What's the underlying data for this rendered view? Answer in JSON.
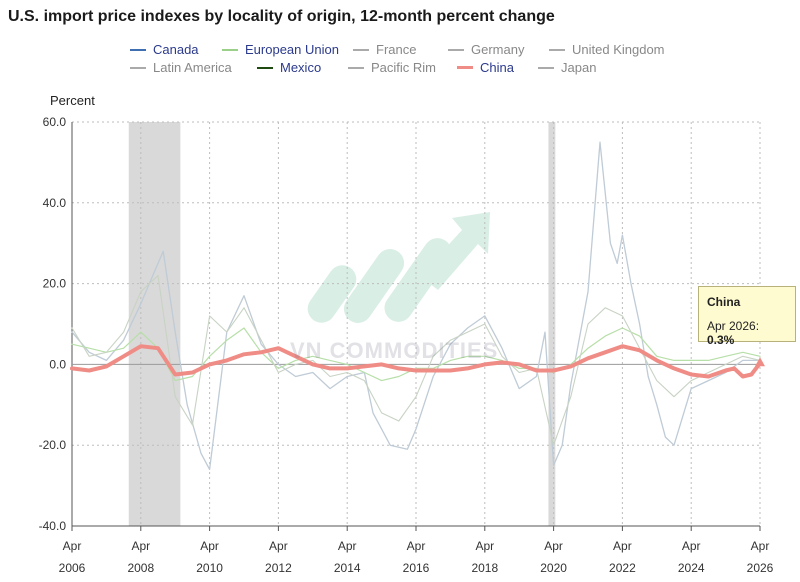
{
  "title": "U.S. import price indexes by locality of origin, 12-month percent change",
  "watermark": "VN COMMODITIES",
  "legend": [
    {
      "label": "Canada",
      "color": "#3f6fb0",
      "active": true
    },
    {
      "label": "European Union",
      "color": "#9bd08a",
      "active": true
    },
    {
      "label": "France",
      "color": "#aaaaaa",
      "active": false
    },
    {
      "label": "Germany",
      "color": "#aaaaaa",
      "active": false
    },
    {
      "label": "United Kingdom",
      "color": "#aaaaaa",
      "active": false
    },
    {
      "label": "Latin America",
      "color": "#aaaaaa",
      "active": false
    },
    {
      "label": "Mexico",
      "color": "#1f4a10",
      "active": true
    },
    {
      "label": "Pacific Rim",
      "color": "#aaaaaa",
      "active": false
    },
    {
      "label": "China",
      "color": "#f08c86",
      "active": true
    },
    {
      "label": "Japan",
      "color": "#aaaaaa",
      "active": false
    }
  ],
  "tooltip": {
    "title": "China",
    "date": "Apr 2026",
    "value": "0.3%"
  },
  "chart_data": {
    "type": "line",
    "ylabel": "Percent",
    "ylim": [
      -40,
      60
    ],
    "yticks": [
      "60.0",
      "40.0",
      "20.0",
      "0.0",
      "-20.0",
      "-40.0"
    ],
    "xlim": [
      2006.25,
      2026.25
    ],
    "xticks": [
      {
        "month": "Apr",
        "year": "2006",
        "x": 2006.25
      },
      {
        "month": "Apr",
        "year": "2008",
        "x": 2008.25
      },
      {
        "month": "Apr",
        "year": "2010",
        "x": 2010.25
      },
      {
        "month": "Apr",
        "year": "2012",
        "x": 2012.25
      },
      {
        "month": "Apr",
        "year": "2014",
        "x": 2014.25
      },
      {
        "month": "Apr",
        "year": "2016",
        "x": 2016.25
      },
      {
        "month": "Apr",
        "year": "2018",
        "x": 2018.25
      },
      {
        "month": "Apr",
        "year": "2020",
        "x": 2020.25
      },
      {
        "month": "Apr",
        "year": "2022",
        "x": 2022.25
      },
      {
        "month": "Apr",
        "year": "2024",
        "x": 2024.25
      },
      {
        "month": "Apr",
        "year": "2026",
        "x": 2026.25
      }
    ],
    "grid": true,
    "recessions": [
      [
        2007.9,
        2009.4
      ],
      [
        2020.1,
        2020.3
      ]
    ],
    "series": [
      {
        "name": "China",
        "color": "#f08c86",
        "width": 4,
        "x": [
          2006.25,
          2006.75,
          2007.25,
          2007.75,
          2008.25,
          2008.75,
          2009.25,
          2009.75,
          2010.25,
          2010.75,
          2011.25,
          2011.75,
          2012.25,
          2012.75,
          2013.25,
          2013.75,
          2014.25,
          2014.75,
          2015.25,
          2015.75,
          2016.25,
          2016.75,
          2017.25,
          2017.75,
          2018.25,
          2018.75,
          2019.25,
          2019.75,
          2020.25,
          2020.75,
          2021.25,
          2021.75,
          2022.25,
          2022.75,
          2023.25,
          2023.75,
          2024.25,
          2024.75,
          2025.25,
          2025.5,
          2025.75,
          2026.0,
          2026.25
        ],
        "y": [
          -1,
          -1.5,
          -0.5,
          2,
          4.5,
          4,
          -2.5,
          -2,
          0,
          1,
          2.5,
          3,
          4,
          2,
          0,
          -1,
          -1,
          -0.5,
          0,
          -1,
          -1.5,
          -1.5,
          -1.5,
          -1,
          0,
          0.5,
          0,
          -1.5,
          -1.5,
          -0.5,
          1.5,
          3,
          4.5,
          3.5,
          1,
          -1,
          -2.5,
          -3,
          -1.5,
          -1,
          -3,
          -2.5,
          0.3
        ]
      },
      {
        "name": "Canada",
        "color": "#bfcbd6",
        "width": 1.3,
        "x": [
          2006.25,
          2006.75,
          2007.25,
          2007.75,
          2008.25,
          2008.6,
          2008.9,
          2009.25,
          2009.6,
          2010.0,
          2010.25,
          2010.75,
          2011.25,
          2011.75,
          2012.25,
          2012.75,
          2013.25,
          2013.75,
          2014.25,
          2014.75,
          2015.0,
          2015.5,
          2016.0,
          2016.25,
          2016.75,
          2017.25,
          2017.75,
          2018.25,
          2018.75,
          2019.25,
          2019.75,
          2020.0,
          2020.25,
          2020.5,
          2020.75,
          2021.25,
          2021.6,
          2021.9,
          2022.1,
          2022.25,
          2022.5,
          2022.75,
          2023.0,
          2023.25,
          2023.5,
          2023.75,
          2024.25,
          2024.75,
          2025.25,
          2025.75,
          2026.25
        ],
        "y": [
          8,
          3,
          1,
          6,
          15,
          22,
          28,
          8,
          -10,
          -22,
          -26,
          8,
          17,
          5,
          0,
          -3,
          -2,
          -6,
          -3,
          -2,
          -12,
          -20,
          -21,
          -16,
          -3,
          5,
          9,
          12,
          4,
          -6,
          -3,
          8,
          -25,
          -20,
          -5,
          18,
          55,
          30,
          25,
          32,
          20,
          10,
          -3,
          -10,
          -18,
          -20,
          -6,
          -4,
          -2,
          1,
          1
        ]
      },
      {
        "name": "European Union",
        "color": "#b7dfa8",
        "width": 1.2,
        "x": [
          2006.25,
          2006.75,
          2007.25,
          2007.75,
          2008.25,
          2008.75,
          2009.25,
          2009.75,
          2010.25,
          2010.75,
          2011.25,
          2011.75,
          2012.25,
          2012.75,
          2013.25,
          2013.75,
          2014.25,
          2014.75,
          2015.25,
          2015.75,
          2016.25,
          2016.75,
          2017.25,
          2017.75,
          2018.25,
          2018.75,
          2019.25,
          2019.75,
          2020.25,
          2020.75,
          2021.25,
          2021.75,
          2022.25,
          2022.75,
          2023.25,
          2023.75,
          2024.25,
          2024.75,
          2025.25,
          2025.75,
          2026.25
        ],
        "y": [
          5,
          4,
          3,
          4,
          8,
          4,
          -4,
          -3,
          2,
          6,
          9,
          3,
          -1,
          1,
          2,
          1,
          0,
          -2,
          -4,
          -3,
          -1,
          -1,
          1,
          2,
          2,
          1,
          -1,
          -1,
          -2,
          0,
          4,
          7,
          9,
          7,
          2,
          1,
          1,
          1,
          2,
          3,
          2
        ]
      },
      {
        "name": "Mexico",
        "color": "#c8d3c4",
        "width": 1.1,
        "x": [
          2006.25,
          2006.75,
          2007.25,
          2007.75,
          2008.25,
          2008.75,
          2009.25,
          2009.75,
          2010.25,
          2010.75,
          2011.25,
          2011.75,
          2012.25,
          2012.75,
          2013.25,
          2013.75,
          2014.25,
          2014.75,
          2015.25,
          2015.75,
          2016.25,
          2016.75,
          2017.25,
          2017.75,
          2018.25,
          2018.75,
          2019.25,
          2019.75,
          2020.25,
          2020.75,
          2021.25,
          2021.75,
          2022.25,
          2022.75,
          2023.25,
          2023.75,
          2024.25,
          2024.75,
          2025.25,
          2025.75,
          2026.25
        ],
        "y": [
          9,
          2,
          3,
          8,
          18,
          22,
          -8,
          -15,
          12,
          8,
          14,
          6,
          -2,
          0,
          1,
          -3,
          -2,
          -4,
          -12,
          -14,
          -8,
          2,
          6,
          8,
          10,
          2,
          -2,
          -1,
          -20,
          -8,
          10,
          14,
          12,
          4,
          -4,
          -8,
          -4,
          -2,
          0,
          2,
          1
        ]
      }
    ]
  }
}
